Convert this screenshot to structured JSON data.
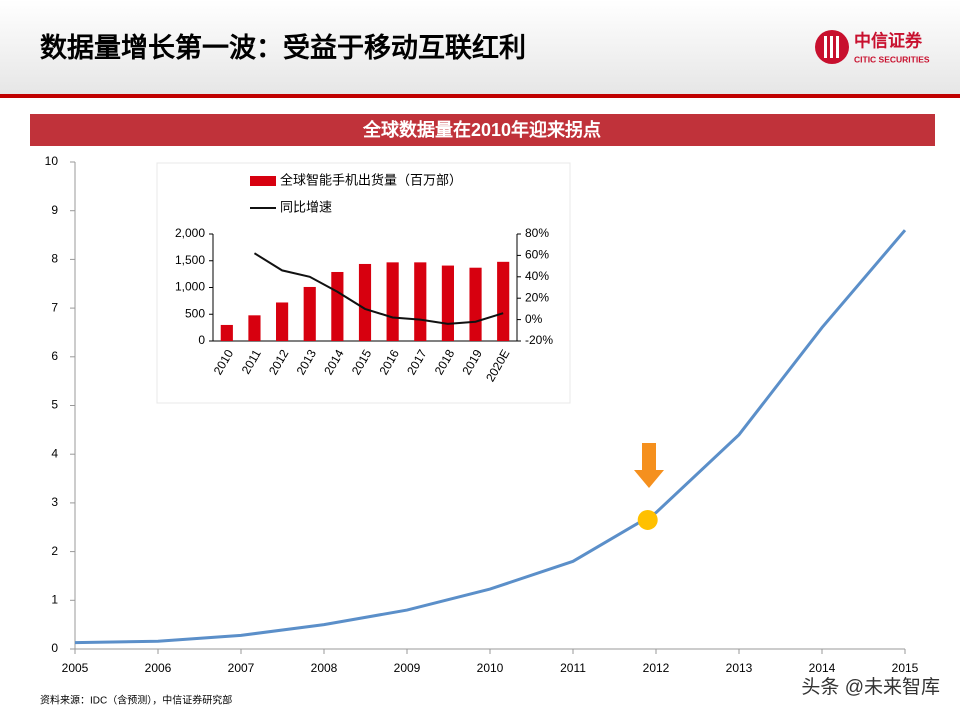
{
  "header": {
    "title": "数据量增长第一波：受益于移动互联红利",
    "logo_cn": "中信证券",
    "logo_en": "CITIC SECURITIES"
  },
  "source": "资料来源：IDC（含预测），中信证券研究部",
  "watermark": "头条 @未来智库",
  "chart_data": [
    {
      "type": "line",
      "title": "全球数据量在2010年迎来拐点",
      "x": [
        2005,
        2006,
        2007,
        2008,
        2009,
        2010,
        2011,
        2012,
        2013,
        2014,
        2015
      ],
      "series": [
        {
          "color": "#5b8fc9",
          "values": [
            0.13,
            0.16,
            0.28,
            0.5,
            0.8,
            1.23,
            1.8,
            2.8,
            4.4,
            6.6,
            8.6
          ]
        }
      ],
      "highlight": {
        "x": 2011.9,
        "y": 2.65,
        "color": "#ffc000"
      },
      "xlim": [
        2005,
        2015
      ],
      "xticks": [
        2005,
        2006,
        2007,
        2008,
        2009,
        2010,
        2011,
        2012,
        2013,
        2014,
        2015
      ],
      "ylim": [
        0,
        10
      ],
      "yticks": [
        0,
        1,
        2,
        3,
        4,
        5,
        6,
        7,
        8,
        9,
        10
      ]
    },
    {
      "type": "bar",
      "categories": [
        "2010",
        "2011",
        "2012",
        "2013",
        "2014",
        "2015",
        "2016",
        "2017",
        "2018",
        "2019",
        "2020E"
      ],
      "series": [
        {
          "name": "全球智能手机出货量（百万部）",
          "type": "bar",
          "color": "#d7000f",
          "values": [
            300,
            480,
            720,
            1010,
            1290,
            1440,
            1470,
            1470,
            1410,
            1370,
            1480
          ]
        },
        {
          "name": "同比增速",
          "type": "line",
          "axis": "y2",
          "color": "#111111",
          "values": [
            null,
            62,
            46,
            40,
            26,
            10,
            2,
            0,
            -4,
            -2,
            6
          ]
        }
      ],
      "ylim": [
        0,
        2000
      ],
      "yticks": [
        0,
        500,
        {
          "value": 1000,
          "label": "1,000"
        },
        {
          "value": 1500,
          "label": "1,500"
        },
        {
          "value": 2000,
          "label": "2,000"
        }
      ],
      "y2lim": [
        -20,
        80
      ],
      "y2ticks": [
        {
          "value": -20,
          "label": "-20%"
        },
        {
          "value": 0,
          "label": "0%"
        },
        {
          "value": 20,
          "label": "20%"
        },
        {
          "value": 40,
          "label": "40%"
        },
        {
          "value": 60,
          "label": "60%"
        },
        {
          "value": 80,
          "label": "80%"
        }
      ]
    }
  ]
}
